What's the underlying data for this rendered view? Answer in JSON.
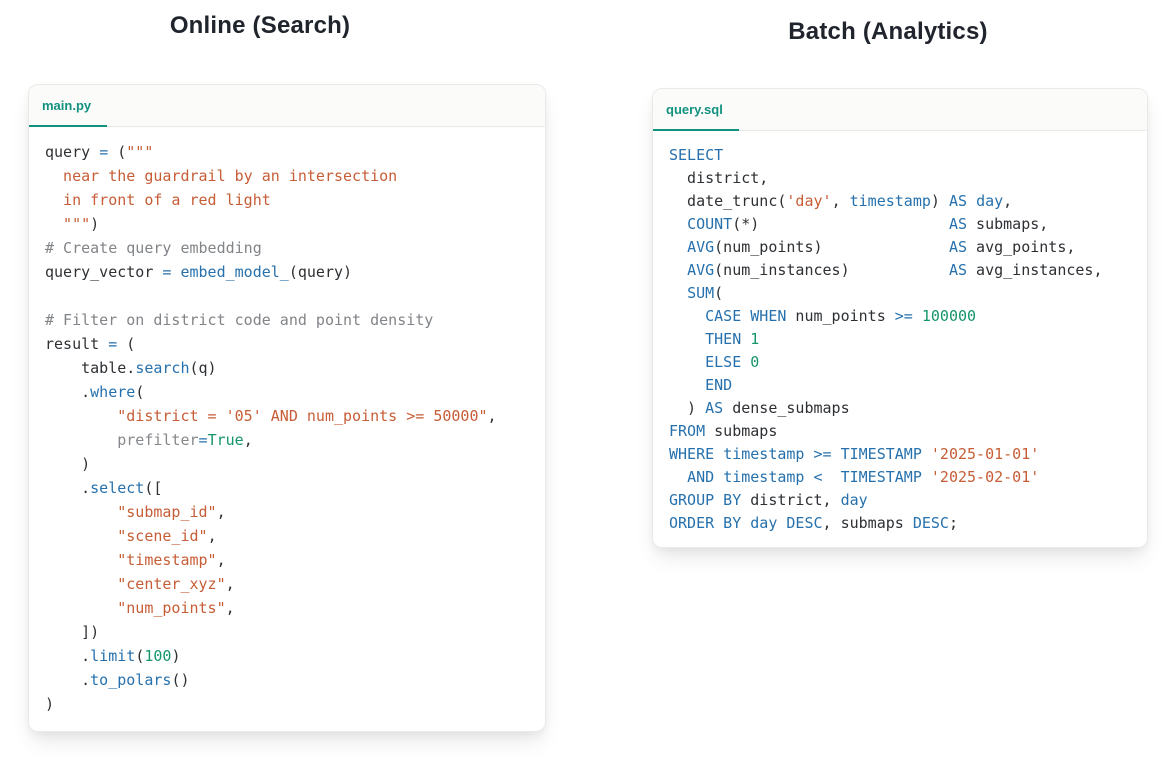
{
  "colors": {
    "accent_teal": "#12917f",
    "keyword_blue": "#2671ad",
    "string_orange": "#c75d36",
    "literal_green": "#149669",
    "comment_gray": "#818488",
    "code_text": "#2d3034",
    "title_text": "#20242c",
    "tabbar_bg": "#fbfbfa",
    "card_border": "#e9e9e6"
  },
  "left": {
    "title": "Online (Search)",
    "tab": "main.py",
    "code": [
      [
        [
          "p",
          "query "
        ],
        [
          "k",
          "="
        ],
        [
          "p",
          " ("
        ],
        [
          "s",
          "\"\"\""
        ]
      ],
      [
        [
          "s",
          "  near the guardrail by an intersection"
        ]
      ],
      [
        [
          "s",
          "  in front of a red light"
        ]
      ],
      [
        [
          "s",
          "  \"\"\""
        ],
        [
          "p",
          ")"
        ]
      ],
      [
        [
          "c",
          "# Create query embedding"
        ]
      ],
      [
        [
          "p",
          "query_vector "
        ],
        [
          "k",
          "="
        ],
        [
          "p",
          " "
        ],
        [
          "k",
          "embed_model_"
        ],
        [
          "p",
          "(query)"
        ]
      ],
      [],
      [
        [
          "c",
          "# Filter on district code and point density"
        ]
      ],
      [
        [
          "p",
          "result "
        ],
        [
          "k",
          "="
        ],
        [
          "p",
          " ("
        ]
      ],
      [
        [
          "p",
          "    table."
        ],
        [
          "k",
          "search"
        ],
        [
          "p",
          "(q)"
        ]
      ],
      [
        [
          "p",
          "    ."
        ],
        [
          "k",
          "where"
        ],
        [
          "p",
          "("
        ]
      ],
      [
        [
          "s",
          "        \"district = '05' AND num_points >= 50000\""
        ],
        [
          "p",
          ","
        ]
      ],
      [
        [
          "g",
          "        prefilter"
        ],
        [
          "k",
          "="
        ],
        [
          "n",
          "True"
        ],
        [
          "p",
          ","
        ]
      ],
      [
        [
          "p",
          "    )"
        ]
      ],
      [
        [
          "p",
          "    ."
        ],
        [
          "k",
          "select"
        ],
        [
          "p",
          "(["
        ]
      ],
      [
        [
          "s",
          "        \"submap_id\""
        ],
        [
          "p",
          ","
        ]
      ],
      [
        [
          "s",
          "        \"scene_id\""
        ],
        [
          "p",
          ","
        ]
      ],
      [
        [
          "s",
          "        \"timestamp\""
        ],
        [
          "p",
          ","
        ]
      ],
      [
        [
          "s",
          "        \"center_xyz\""
        ],
        [
          "p",
          ","
        ]
      ],
      [
        [
          "s",
          "        \"num_points\""
        ],
        [
          "p",
          ","
        ]
      ],
      [
        [
          "p",
          "    ])"
        ]
      ],
      [
        [
          "p",
          "    ."
        ],
        [
          "k",
          "limit"
        ],
        [
          "p",
          "("
        ],
        [
          "n",
          "100"
        ],
        [
          "p",
          ")"
        ]
      ],
      [
        [
          "p",
          "    ."
        ],
        [
          "k",
          "to_polars"
        ],
        [
          "p",
          "()"
        ]
      ],
      [
        [
          "p",
          ")"
        ]
      ]
    ]
  },
  "right": {
    "title": "Batch (Analytics)",
    "tab": "query.sql",
    "code": [
      [
        [
          "k",
          "SELECT"
        ]
      ],
      [
        [
          "p",
          "  district,"
        ]
      ],
      [
        [
          "p",
          "  date_trunc("
        ],
        [
          "s",
          "'day'"
        ],
        [
          "p",
          ", "
        ],
        [
          "k",
          "timestamp"
        ],
        [
          "p",
          ") "
        ],
        [
          "k",
          "AS"
        ],
        [
          "p",
          " "
        ],
        [
          "k",
          "day"
        ],
        [
          "p",
          ","
        ]
      ],
      [
        [
          "p",
          "  "
        ],
        [
          "k",
          "COUNT"
        ],
        [
          "p",
          "(*)"
        ],
        [
          "p",
          "                     "
        ],
        [
          "k",
          "AS"
        ],
        [
          "p",
          " submaps,"
        ]
      ],
      [
        [
          "p",
          "  "
        ],
        [
          "k",
          "AVG"
        ],
        [
          "p",
          "(num_points)"
        ],
        [
          "p",
          "              "
        ],
        [
          "k",
          "AS"
        ],
        [
          "p",
          " avg_points,"
        ]
      ],
      [
        [
          "p",
          "  "
        ],
        [
          "k",
          "AVG"
        ],
        [
          "p",
          "(num_instances)"
        ],
        [
          "p",
          "           "
        ],
        [
          "k",
          "AS"
        ],
        [
          "p",
          " avg_instances,"
        ]
      ],
      [
        [
          "p",
          "  "
        ],
        [
          "k",
          "SUM"
        ],
        [
          "p",
          "("
        ]
      ],
      [
        [
          "p",
          "    "
        ],
        [
          "k",
          "CASE"
        ],
        [
          "p",
          " "
        ],
        [
          "k",
          "WHEN"
        ],
        [
          "p",
          " num_points "
        ],
        [
          "k",
          ">="
        ],
        [
          "p",
          " "
        ],
        [
          "n",
          "100000"
        ]
      ],
      [
        [
          "p",
          "    "
        ],
        [
          "k",
          "THEN"
        ],
        [
          "p",
          " "
        ],
        [
          "n",
          "1"
        ]
      ],
      [
        [
          "p",
          "    "
        ],
        [
          "k",
          "ELSE"
        ],
        [
          "p",
          " "
        ],
        [
          "n",
          "0"
        ]
      ],
      [
        [
          "p",
          "    "
        ],
        [
          "k",
          "END"
        ]
      ],
      [
        [
          "p",
          "  ) "
        ],
        [
          "k",
          "AS"
        ],
        [
          "p",
          " dense_submaps"
        ]
      ],
      [
        [
          "k",
          "FROM"
        ],
        [
          "p",
          " submaps"
        ]
      ],
      [
        [
          "k",
          "WHERE"
        ],
        [
          "p",
          " "
        ],
        [
          "k",
          "timestamp"
        ],
        [
          "p",
          " "
        ],
        [
          "k",
          ">="
        ],
        [
          "p",
          " "
        ],
        [
          "k",
          "TIMESTAMP"
        ],
        [
          "p",
          " "
        ],
        [
          "s",
          "'2025-01-01'"
        ]
      ],
      [
        [
          "p",
          "  "
        ],
        [
          "k",
          "AND"
        ],
        [
          "p",
          " "
        ],
        [
          "k",
          "timestamp"
        ],
        [
          "p",
          " "
        ],
        [
          "k",
          "<"
        ],
        [
          "p",
          "  "
        ],
        [
          "k",
          "TIMESTAMP"
        ],
        [
          "p",
          " "
        ],
        [
          "s",
          "'2025-02-01'"
        ]
      ],
      [
        [
          "k",
          "GROUP BY"
        ],
        [
          "p",
          " district, "
        ],
        [
          "k",
          "day"
        ]
      ],
      [
        [
          "k",
          "ORDER BY"
        ],
        [
          "p",
          " "
        ],
        [
          "k",
          "day"
        ],
        [
          "p",
          " "
        ],
        [
          "k",
          "DESC"
        ],
        [
          "p",
          ", submaps "
        ],
        [
          "k",
          "DESC"
        ],
        [
          "p",
          ";"
        ]
      ]
    ]
  }
}
